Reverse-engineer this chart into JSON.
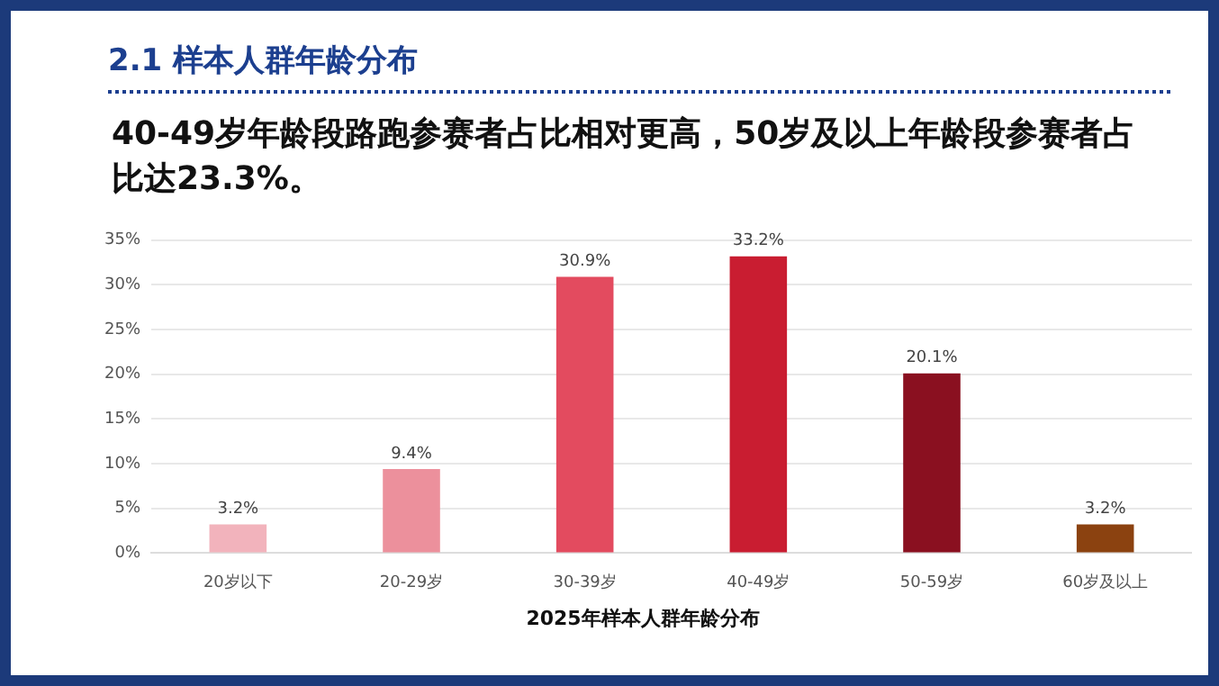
{
  "chart_data": {
    "type": "bar",
    "title": "2.1 样本人群年龄分布",
    "subtitle": "40-49岁年龄段路跑参赛者占比相对更高，50岁及以上年龄段参赛者占比达23.3%。",
    "xlabel": "2025年样本人群年龄分布",
    "categories": [
      "20岁以下",
      "20-29岁",
      "30-39岁",
      "40-49岁",
      "50-59岁",
      "60岁及以上"
    ],
    "values": [
      3.2,
      9.4,
      30.9,
      33.2,
      20.1,
      3.2
    ],
    "colors": [
      "#f2b3bc",
      "#ec909c",
      "#e34b5f",
      "#c91d31",
      "#8a1020",
      "#8b4210"
    ],
    "value_labels": [
      "3.2%",
      "9.4%",
      "30.9%",
      "33.2%",
      "20.1%",
      "3.2%"
    ],
    "ylim": [
      0,
      35
    ],
    "yticks": [
      {
        "value": 0,
        "label": "0%"
      },
      {
        "value": 5,
        "label": "5%"
      },
      {
        "value": 10,
        "label": "10%"
      },
      {
        "value": 15,
        "label": "15%"
      },
      {
        "value": 20,
        "label": "20%"
      },
      {
        "value": 25,
        "label": "25%"
      },
      {
        "value": 30,
        "label": "30%"
      },
      {
        "value": 35,
        "label": "35%"
      }
    ],
    "grid": "y",
    "legend": false
  }
}
